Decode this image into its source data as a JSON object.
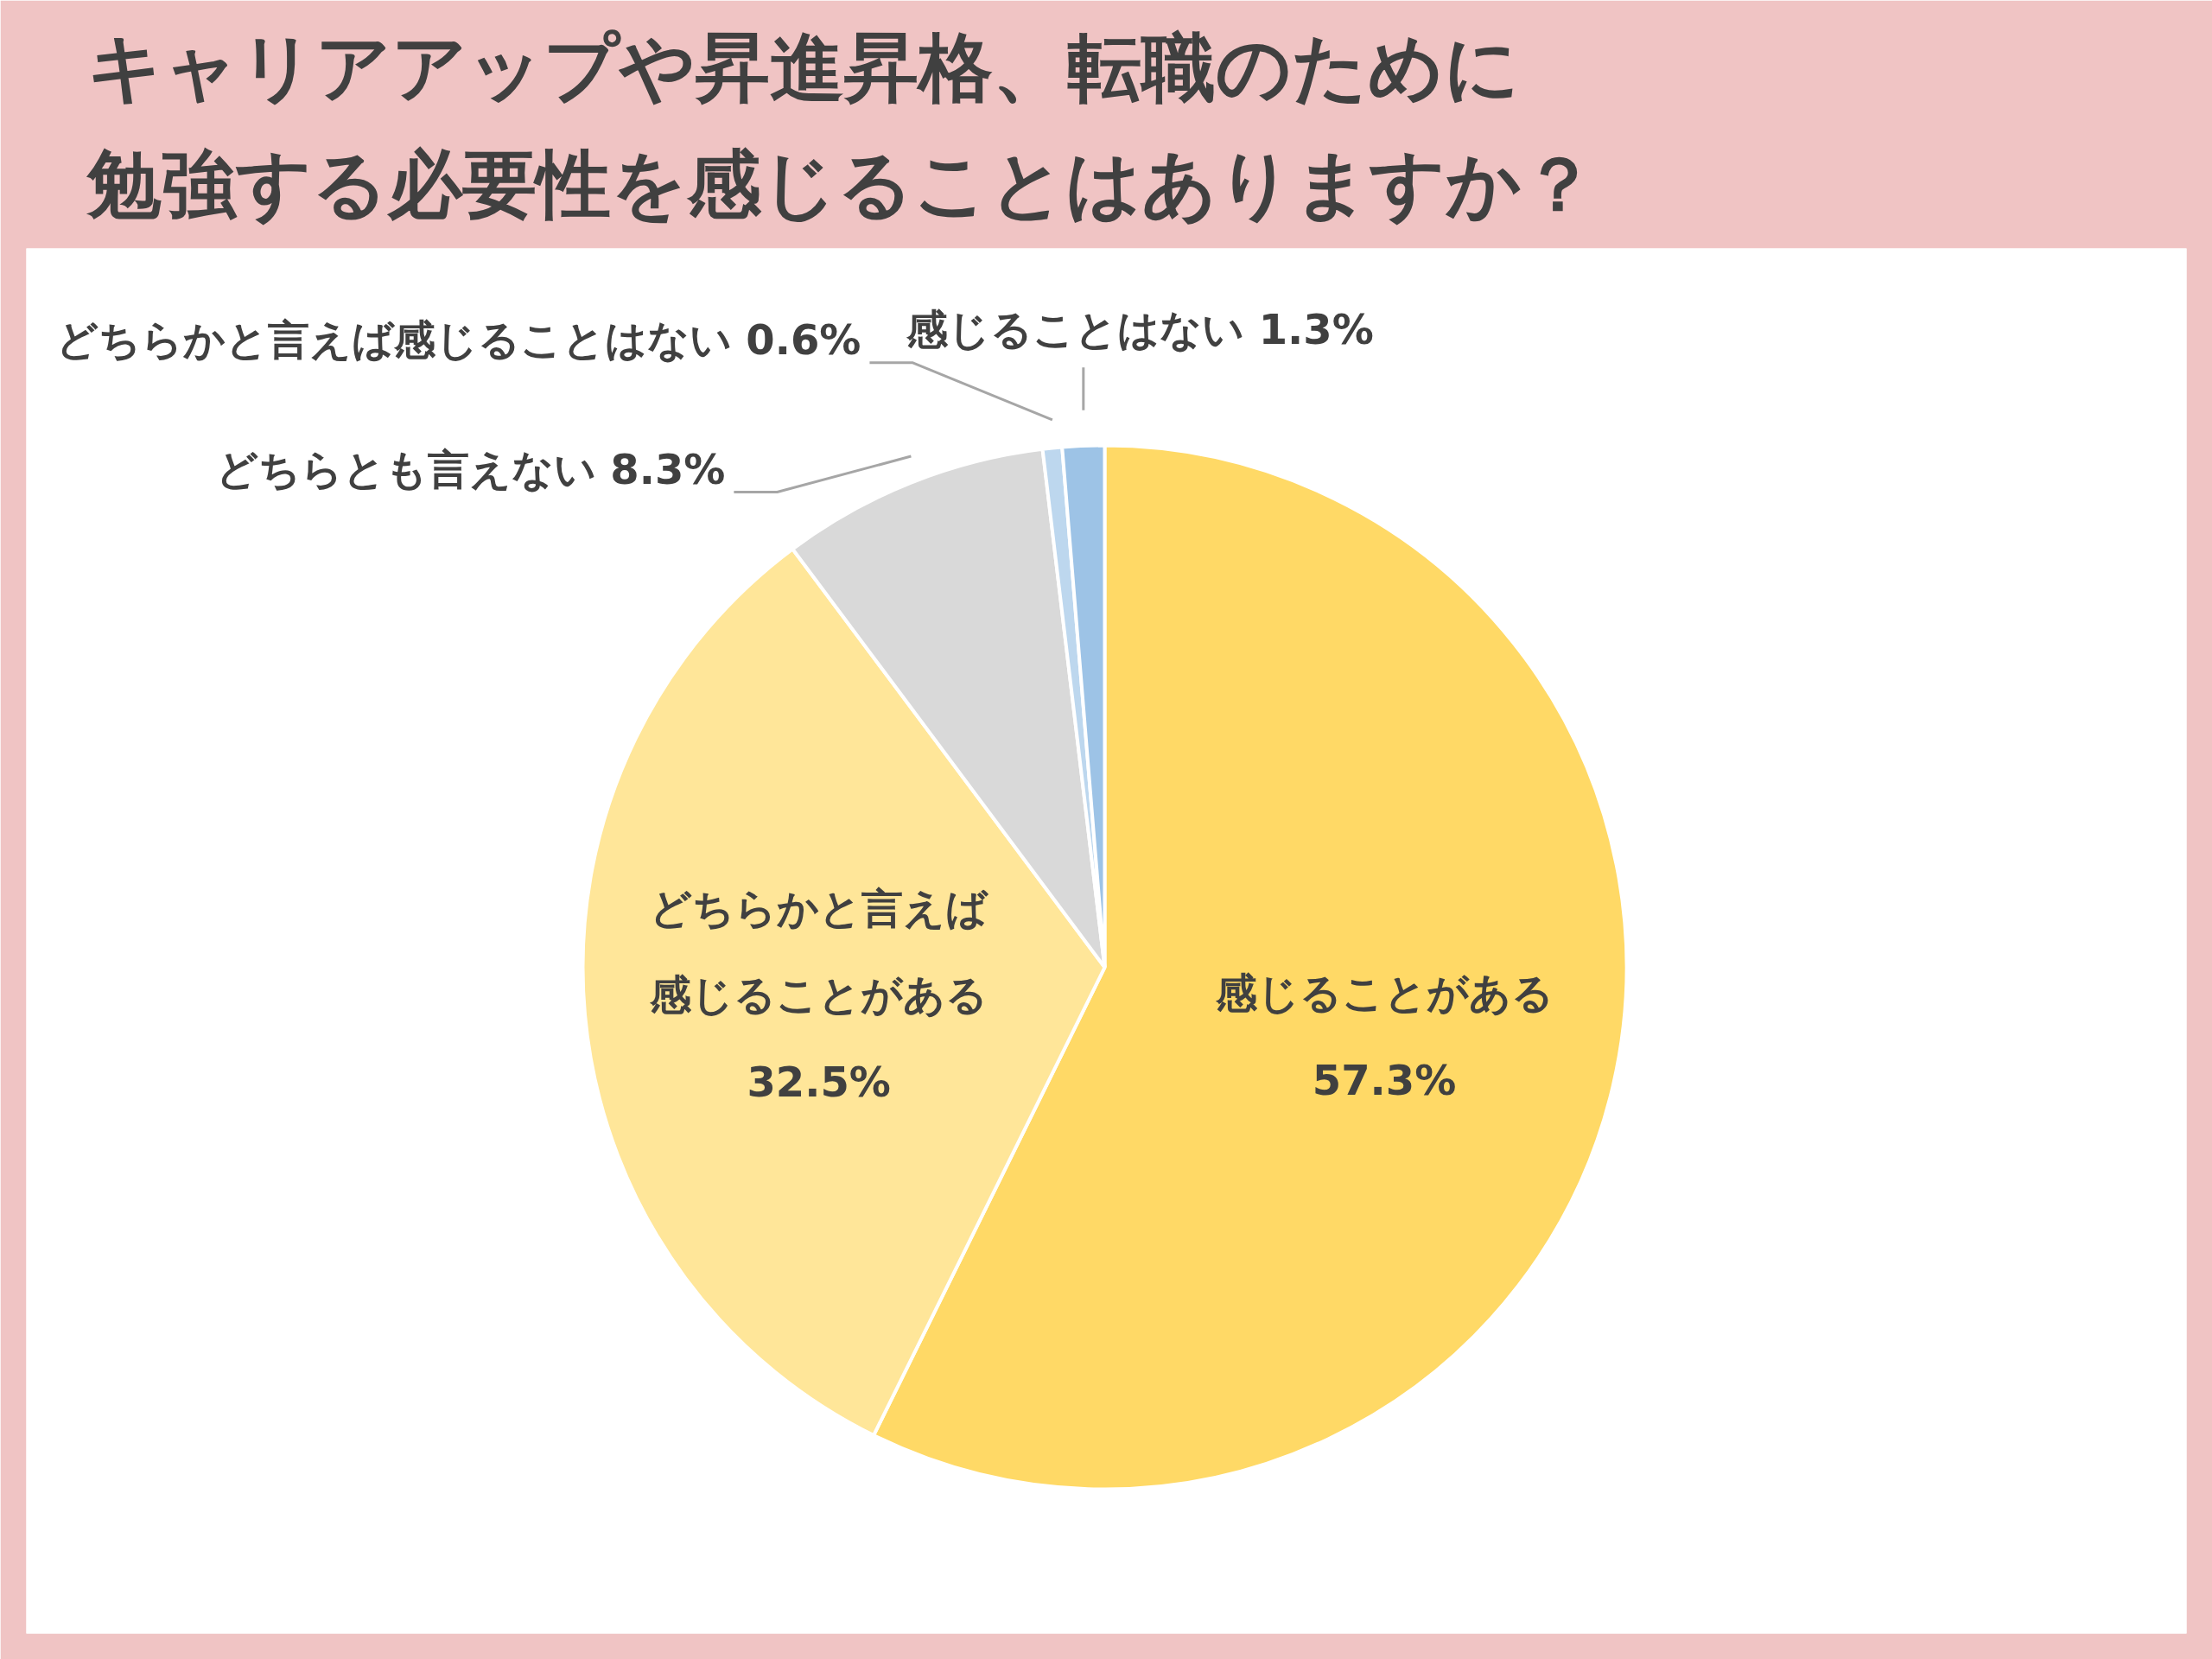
{
  "chart_data": {
    "type": "pie",
    "title": "キャリアアップや昇進昇格、転職のために勉強する必要性を感じることはありますか？",
    "categories": [
      "感じることがある",
      "どちらかと言えば感じることがある",
      "どちらとも言えない",
      "どちらかと言えば感じることはない",
      "感じることはない"
    ],
    "values": [
      57.3,
      32.5,
      8.3,
      0.6,
      1.3
    ],
    "colors": [
      "#ffd966",
      "#ffe699",
      "#d9d9d9",
      "#bdd7ee",
      "#9dc3e6"
    ],
    "value_labels": [
      "57.3%",
      "32.5%",
      "8.3%",
      "0.6%",
      "1.3%"
    ]
  }
}
